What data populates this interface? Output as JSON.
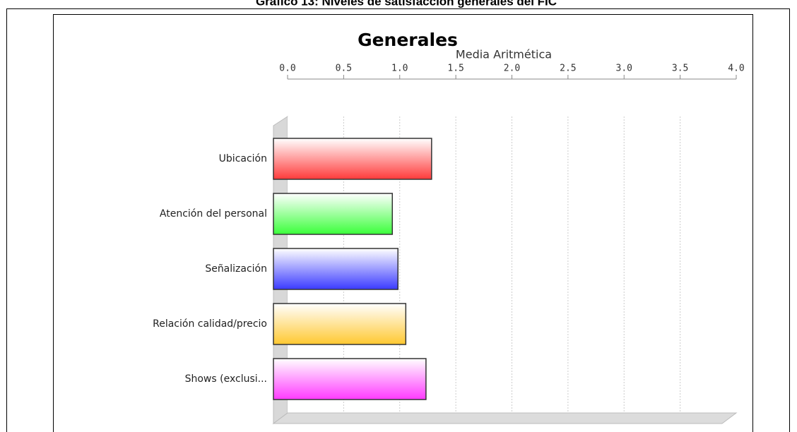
{
  "caption": "Gráfico 13: Niveles de satisfacción generales del FIC",
  "chart_data": {
    "type": "bar",
    "orientation": "horizontal",
    "title": "Generales",
    "x_label": "Media Aritmética",
    "categories": [
      "Ubicación",
      "Atención del personal",
      "Señalización",
      "Relación calidad/precio",
      "Shows (exclusi..."
    ],
    "values": [
      1.41,
      1.06,
      1.11,
      1.18,
      1.36
    ],
    "colors": [
      "#ff3a3a",
      "#3aff3a",
      "#3a3aff",
      "#ffc830",
      "#ff3aff"
    ],
    "xlim": [
      0,
      4
    ],
    "xticks": [
      {
        "value": 0,
        "label": "0.0"
      },
      0.5,
      {
        "value": 1,
        "label": "1.0"
      },
      1.5,
      {
        "value": 2,
        "label": "2.0"
      },
      2.5,
      {
        "value": 3,
        "label": "3.0"
      },
      3.5,
      {
        "value": 4,
        "label": "4.0"
      }
    ],
    "grid": true
  }
}
